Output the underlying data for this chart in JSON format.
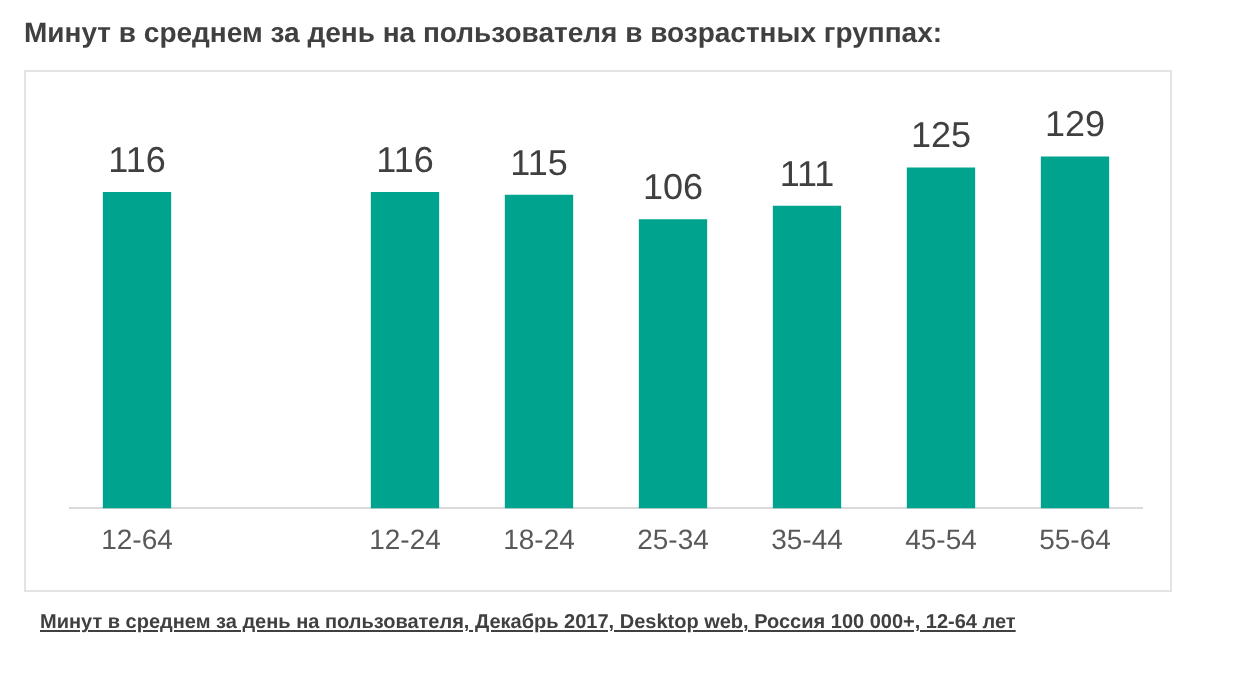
{
  "chart_data": {
    "type": "bar",
    "title": "Минут в среднем за день на пользователя в возрастных группах:",
    "categories": [
      "12-64",
      null,
      "12-24",
      "18-24",
      "25-34",
      "35-44",
      "45-54",
      "55-64"
    ],
    "values": [
      116,
      null,
      116,
      115,
      106,
      111,
      125,
      129
    ],
    "color": "#00a38d",
    "data_labels": true,
    "grid": false,
    "legend": false,
    "annotations": [
      "Минут в среднем за день на пользователя, Декабрь 2017, Desktop web, Россия 100 000+, 12-64 лет"
    ]
  }
}
